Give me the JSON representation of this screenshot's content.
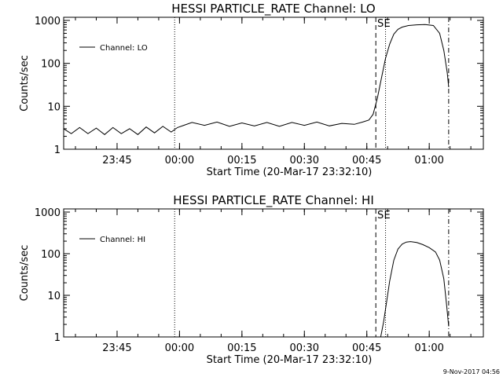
{
  "footer": {
    "timestamp": "9-Nov-2017 04:56"
  },
  "chart_data": [
    {
      "type": "line",
      "title": "HESSI PARTICLE_RATE Channel: LO",
      "xlabel": "Start Time (20-Mar-17 23:32:10)",
      "ylabel": "Counts/sec",
      "yscale": "log",
      "ylim": [
        1,
        1000
      ],
      "xlim": [
        "23:32:10",
        "01:13:00"
      ],
      "x_ticks": [
        "23:45",
        "00:00",
        "00:15",
        "00:30",
        "00:45",
        "01:00"
      ],
      "y_ticks": [
        "1",
        "10",
        "100",
        "1000"
      ],
      "legend": {
        "entries": [
          "Channel: LO"
        ],
        "placement": "top-left"
      },
      "markers": [
        {
          "time": "23:58:50",
          "style": "dotted",
          "label": ""
        },
        {
          "time": "00:47:10",
          "style": "dashed",
          "label": "S"
        },
        {
          "time": "00:49:30",
          "style": "dotted",
          "label": "E"
        },
        {
          "time": "01:04:40",
          "style": "dash-dot",
          "label": ""
        }
      ],
      "series": [
        {
          "name": "Channel: LO",
          "x": [
            "23:32:10",
            "23:34:00",
            "23:36:00",
            "23:38:00",
            "23:40:00",
            "23:42:00",
            "23:44:00",
            "23:46:00",
            "23:48:00",
            "23:50:00",
            "23:52:00",
            "23:54:00",
            "23:56:00",
            "23:58:00",
            "23:59:30",
            "00:01:00",
            "00:03:00",
            "00:06:00",
            "00:09:00",
            "00:12:00",
            "00:15:00",
            "00:18:00",
            "00:21:00",
            "00:24:00",
            "00:27:00",
            "00:30:00",
            "00:33:00",
            "00:36:00",
            "00:39:00",
            "00:42:00",
            "00:44:00",
            "00:45:30",
            "00:46:30",
            "00:47:30",
            "00:48:30",
            "00:49:30",
            "00:50:30",
            "00:51:30",
            "00:52:30",
            "00:53:30",
            "00:55:00",
            "00:57:00",
            "00:59:00",
            "01:01:00",
            "01:02:30",
            "01:03:30",
            "01:04:20",
            "01:04:40"
          ],
          "values": [
            3,
            2.3,
            3.2,
            2.3,
            3.1,
            2.2,
            3.2,
            2.3,
            3.0,
            2.2,
            3.3,
            2.4,
            3.4,
            2.5,
            3.2,
            3.6,
            4.2,
            3.6,
            4.3,
            3.4,
            4.1,
            3.5,
            4.2,
            3.4,
            4.2,
            3.6,
            4.3,
            3.5,
            4.0,
            3.8,
            4.3,
            4.8,
            6.5,
            15,
            45,
            130,
            280,
            480,
            620,
            700,
            760,
            790,
            800,
            760,
            500,
            200,
            60,
            28
          ]
        }
      ]
    },
    {
      "type": "line",
      "title": "HESSI PARTICLE_RATE Channel: HI",
      "xlabel": "Start Time (20-Mar-17 23:32:10)",
      "ylabel": "Counts/sec",
      "yscale": "log",
      "ylim": [
        1,
        1000
      ],
      "xlim": [
        "23:32:10",
        "01:13:00"
      ],
      "x_ticks": [
        "23:45",
        "00:00",
        "00:15",
        "00:30",
        "00:45",
        "01:00"
      ],
      "y_ticks": [
        "1",
        "10",
        "100",
        "1000"
      ],
      "legend": {
        "entries": [
          "Channel: HI"
        ],
        "placement": "top-left"
      },
      "markers": [
        {
          "time": "23:58:50",
          "style": "dotted",
          "label": ""
        },
        {
          "time": "00:47:10",
          "style": "dashed",
          "label": "S"
        },
        {
          "time": "00:49:30",
          "style": "dotted",
          "label": "E"
        },
        {
          "time": "01:04:40",
          "style": "dash-dot",
          "label": ""
        }
      ],
      "series": [
        {
          "name": "Channel: HI",
          "x": [
            "00:48:20",
            "00:49:00",
            "00:49:40",
            "00:50:30",
            "00:51:30",
            "00:52:30",
            "00:53:30",
            "00:54:30",
            "00:55:30",
            "00:57:00",
            "00:58:30",
            "01:00:00",
            "01:01:30",
            "01:02:30",
            "01:03:30",
            "01:04:10",
            "01:04:40"
          ],
          "values": [
            1.0,
            2.2,
            6,
            22,
            70,
            130,
            170,
            190,
            195,
            185,
            165,
            140,
            110,
            70,
            25,
            6,
            1.8
          ]
        }
      ]
    }
  ]
}
